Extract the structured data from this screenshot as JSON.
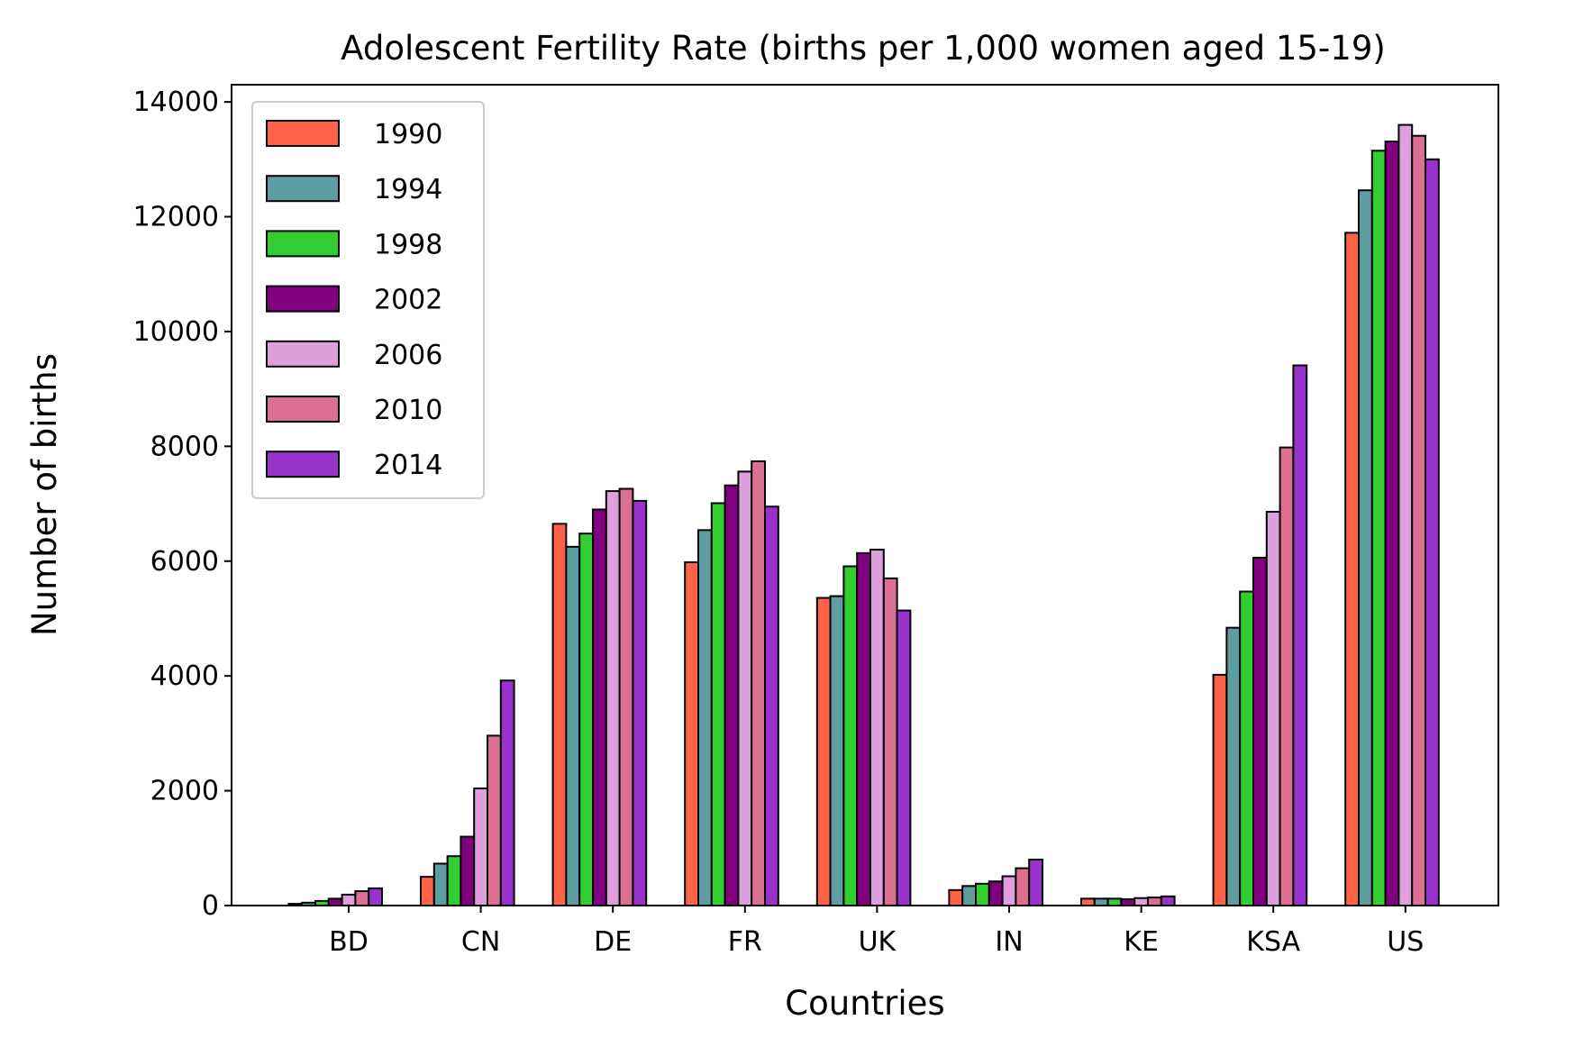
{
  "chart_data": {
    "type": "bar",
    "title": "Adolescent Fertility Rate (births per 1,000 women aged 15-19)",
    "xlabel": "Countries",
    "ylabel": "Number of births",
    "categories": [
      "BD",
      "CN",
      "DE",
      "FR",
      "UK",
      "IN",
      "KE",
      "KSA",
      "US"
    ],
    "ylim": [
      0,
      14300
    ],
    "yticks": [
      0,
      2000,
      4000,
      6000,
      8000,
      10000,
      12000,
      14000
    ],
    "ytick_labels": [
      "0",
      "2000",
      "4000",
      "6000",
      "8000",
      "10000",
      "12000",
      "14000"
    ],
    "grid": false,
    "legend_position": "top-left",
    "series": [
      {
        "name": "1990",
        "color": "#FF6347",
        "values": [
          30,
          500,
          6650,
          5980,
          5360,
          270,
          120,
          4020,
          11720
        ]
      },
      {
        "name": "1994",
        "color": "#5F9EA0",
        "values": [
          50,
          730,
          6250,
          6540,
          5390,
          340,
          120,
          4840,
          12460
        ]
      },
      {
        "name": "1998",
        "color": "#32CD32",
        "values": [
          80,
          860,
          6480,
          7010,
          5910,
          380,
          120,
          5470,
          13150
        ]
      },
      {
        "name": "2002",
        "color": "#800080",
        "values": [
          120,
          1200,
          6900,
          7320,
          6140,
          420,
          110,
          6060,
          13310
        ]
      },
      {
        "name": "2006",
        "color": "#DDA0DD",
        "values": [
          190,
          2040,
          7220,
          7560,
          6200,
          510,
          130,
          6860,
          13600
        ]
      },
      {
        "name": "2010",
        "color": "#DB7093",
        "values": [
          250,
          2960,
          7260,
          7740,
          5700,
          650,
          140,
          7980,
          13410
        ]
      },
      {
        "name": "2014",
        "color": "#9932CC",
        "values": [
          300,
          3920,
          7050,
          6950,
          5140,
          800,
          160,
          9410,
          13000
        ]
      }
    ]
  }
}
